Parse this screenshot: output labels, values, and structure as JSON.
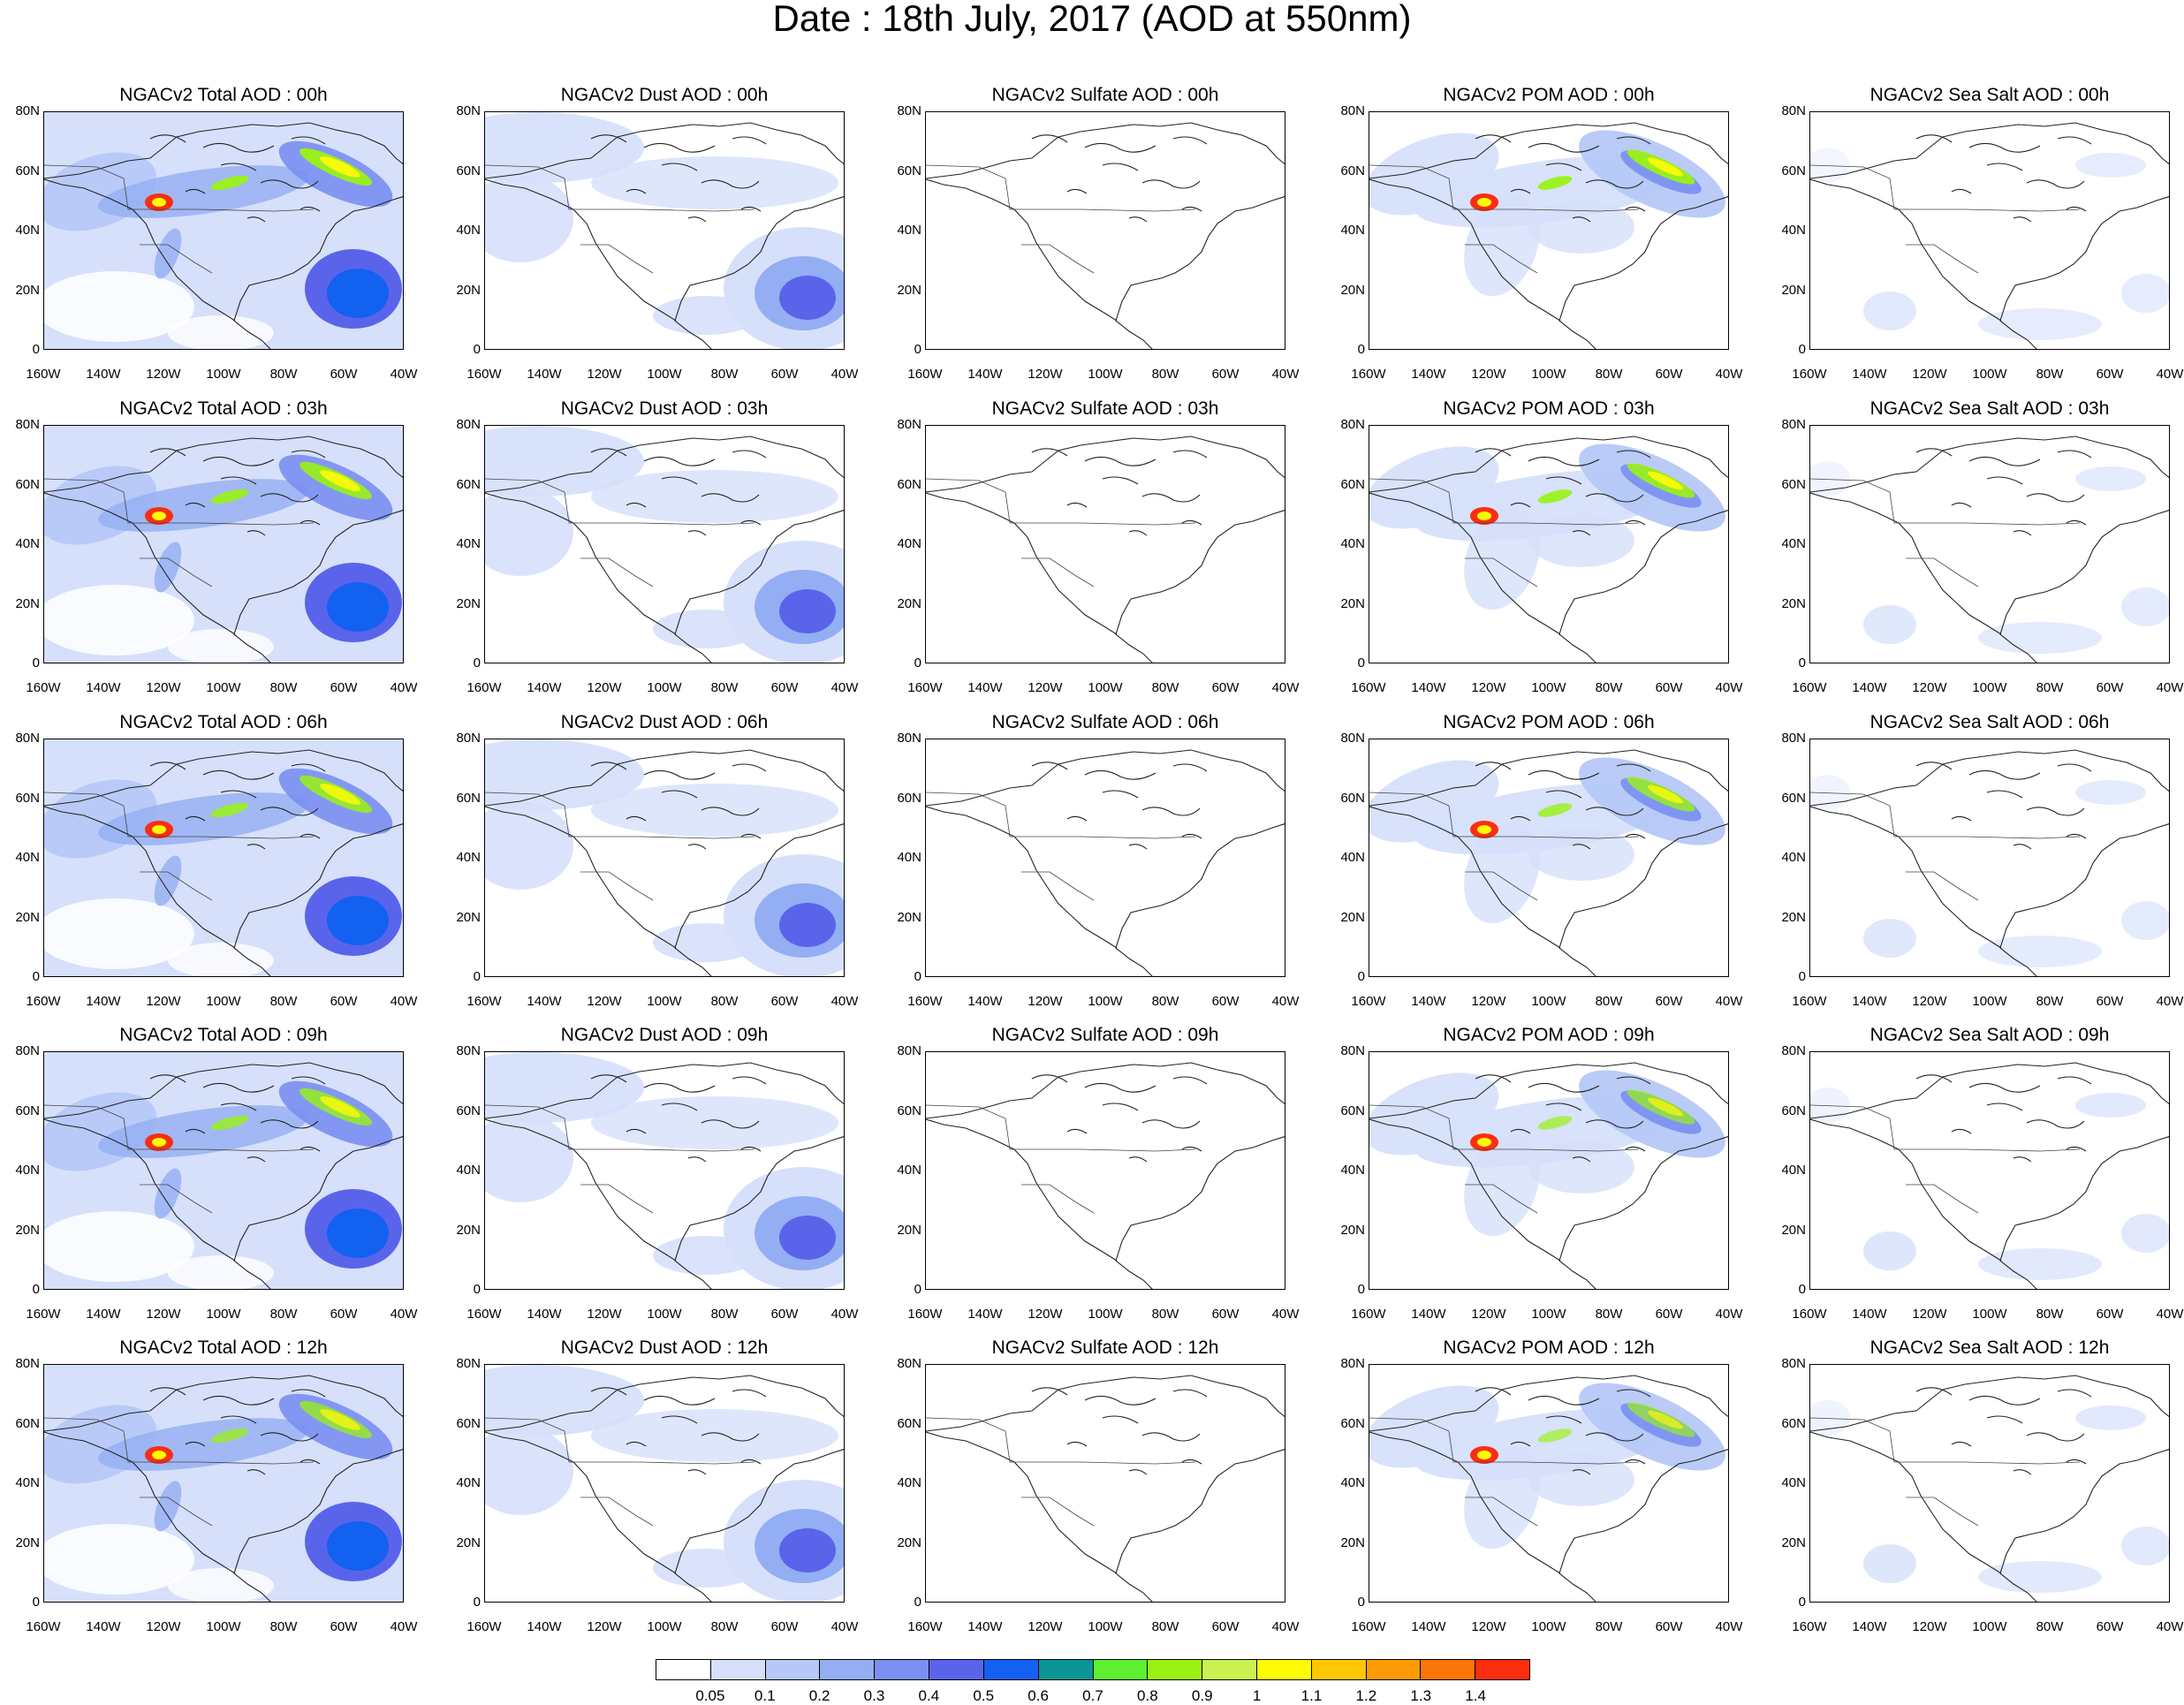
{
  "title": "Date : 18th July, 2017 (AOD at 550nm)",
  "lat_labels": [
    "80N",
    "60N",
    "40N",
    "20N",
    "0"
  ],
  "lon_labels": [
    "160W",
    "140W",
    "120W",
    "100W",
    "80W",
    "60W",
    "40W"
  ],
  "panels": [
    {
      "title": "NGACv2 Total AOD : 00h",
      "species": "total",
      "level": 0.95
    },
    {
      "title": "NGACv2 Dust AOD : 00h",
      "species": "dust",
      "level": 0.55
    },
    {
      "title": "NGACv2 Sulfate AOD : 00h",
      "species": "sulfate",
      "level": 0.0
    },
    {
      "title": "NGACv2 POM AOD : 00h",
      "species": "pom",
      "level": 0.95
    },
    {
      "title": "NGACv2 Sea Salt AOD : 00h",
      "species": "seasalt",
      "level": 0.3
    },
    {
      "title": "NGACv2 Total AOD : 03h",
      "species": "total",
      "level": 0.9
    },
    {
      "title": "NGACv2 Dust AOD : 03h",
      "species": "dust",
      "level": 0.55
    },
    {
      "title": "NGACv2 Sulfate AOD : 03h",
      "species": "sulfate",
      "level": 0.0
    },
    {
      "title": "NGACv2 POM AOD : 03h",
      "species": "pom",
      "level": 0.9
    },
    {
      "title": "NGACv2 Sea Salt AOD : 03h",
      "species": "seasalt",
      "level": 0.35
    },
    {
      "title": "NGACv2 Total AOD : 06h",
      "species": "total",
      "level": 0.85
    },
    {
      "title": "NGACv2 Dust AOD : 06h",
      "species": "dust",
      "level": 0.55
    },
    {
      "title": "NGACv2 Sulfate AOD : 06h",
      "species": "sulfate",
      "level": 0.0
    },
    {
      "title": "NGACv2 POM AOD : 06h",
      "species": "pom",
      "level": 0.8
    },
    {
      "title": "NGACv2 Sea Salt AOD : 06h",
      "species": "seasalt",
      "level": 0.35
    },
    {
      "title": "NGACv2 Total AOD : 09h",
      "species": "total",
      "level": 0.8
    },
    {
      "title": "NGACv2 Dust AOD : 09h",
      "species": "dust",
      "level": 0.55
    },
    {
      "title": "NGACv2 Sulfate AOD : 09h",
      "species": "sulfate",
      "level": 0.0
    },
    {
      "title": "NGACv2 POM AOD : 09h",
      "species": "pom",
      "level": 0.7
    },
    {
      "title": "NGACv2 Sea Salt  AOD : 09h",
      "species": "seasalt",
      "level": 0.4
    },
    {
      "title": "NGACv2 Total AOD  : 12h",
      "species": "total",
      "level": 0.75
    },
    {
      "title": "NGACv2 Dust AOD : 12h",
      "species": "dust",
      "level": 0.55
    },
    {
      "title": "NGACv2 Sulfate AOD : 12h",
      "species": "sulfate",
      "level": 0.0
    },
    {
      "title": "NGACv2 POM  AOD : 12h",
      "species": "pom",
      "level": 0.65
    },
    {
      "title": "NGACv2 Sea Salt  AOD : 12h",
      "species": "seasalt",
      "level": 0.4
    }
  ],
  "colorbar": {
    "colors": [
      "#ffffff",
      "#d6e0fb",
      "#b6c8f7",
      "#93aef3",
      "#7a8ff1",
      "#5a64ea",
      "#1261f0",
      "#0b9596",
      "#5ef02f",
      "#9af214",
      "#c9f250",
      "#fdfb06",
      "#fdc705",
      "#fd9a05",
      "#fc7607",
      "#fa2e0e"
    ],
    "labels": [
      "0.05",
      "0.1",
      "0.2",
      "0.3",
      "0.4",
      "0.5",
      "0.6",
      "0.7",
      "0.8",
      "0.9",
      "1",
      "1.1",
      "1.2",
      "1.3",
      "1.4"
    ]
  }
}
